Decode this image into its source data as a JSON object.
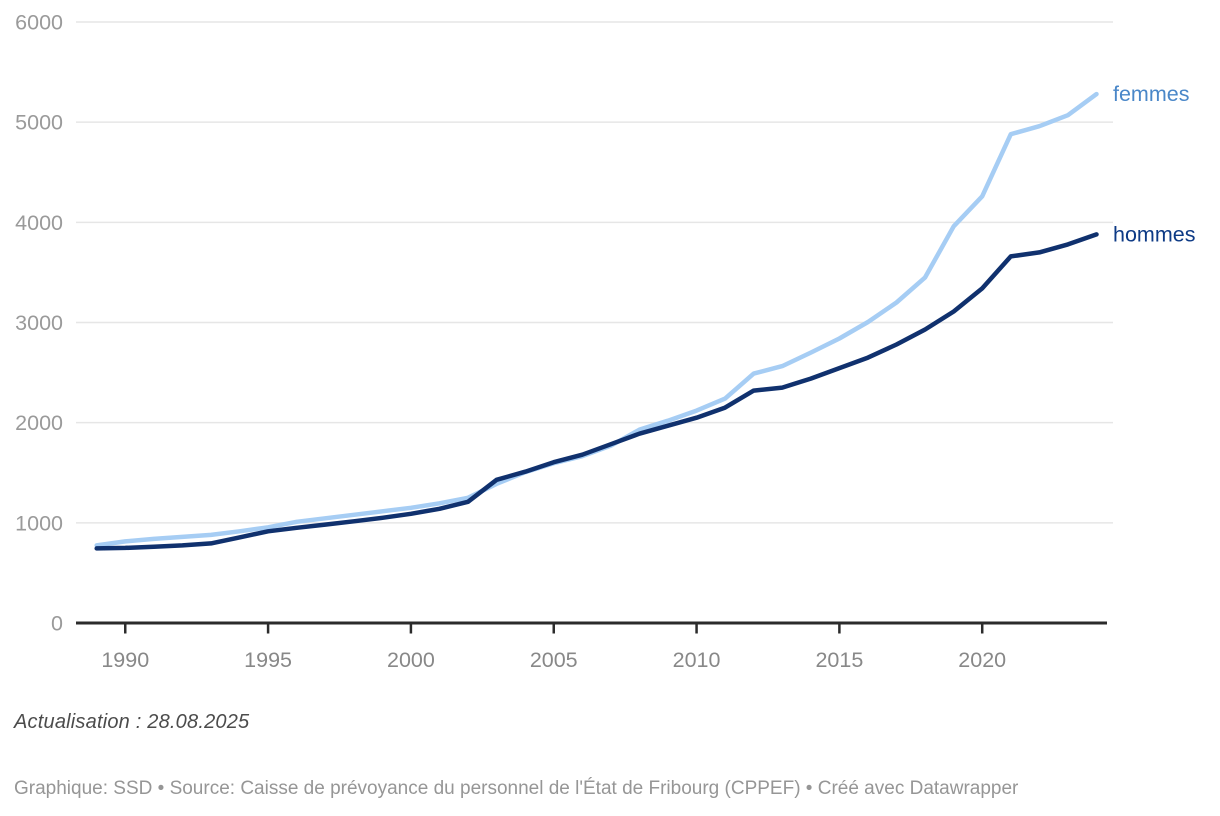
{
  "chart_data": {
    "type": "line",
    "title": "",
    "xlabel": "",
    "ylabel": "",
    "x": [
      1989,
      1990,
      1991,
      1992,
      1993,
      1994,
      1995,
      1996,
      1997,
      1998,
      1999,
      2000,
      2001,
      2002,
      2003,
      2004,
      2005,
      2006,
      2007,
      2008,
      2009,
      2010,
      2011,
      2012,
      2013,
      2014,
      2015,
      2016,
      2017,
      2018,
      2019,
      2020,
      2021,
      2022,
      2023,
      2024
    ],
    "series": [
      {
        "name": "femmes",
        "color": "#a6cdf4",
        "label_color": "#4a87c8",
        "values": [
          775,
          815,
          840,
          860,
          880,
          915,
          955,
          1010,
          1045,
          1080,
          1115,
          1150,
          1195,
          1250,
          1390,
          1505,
          1595,
          1665,
          1770,
          1930,
          2020,
          2120,
          2240,
          2490,
          2565,
          2700,
          2840,
          3005,
          3200,
          3450,
          3960,
          4260,
          4880,
          4960,
          5070,
          5280
        ]
      },
      {
        "name": "hommes",
        "color": "#10316e",
        "label_color": "#0d3a85",
        "values": [
          745,
          750,
          762,
          775,
          795,
          855,
          915,
          950,
          982,
          1015,
          1050,
          1090,
          1140,
          1210,
          1430,
          1510,
          1605,
          1680,
          1785,
          1890,
          1970,
          2050,
          2150,
          2320,
          2350,
          2440,
          2545,
          2650,
          2780,
          2930,
          3110,
          3340,
          3660,
          3700,
          3780,
          3880
        ]
      }
    ],
    "ylim": [
      0,
      6000
    ],
    "yticks": [
      0,
      1000,
      2000,
      3000,
      4000,
      5000,
      6000
    ],
    "xticks": [
      1990,
      1995,
      2000,
      2005,
      2010,
      2015,
      2020
    ],
    "grid": "horizontal",
    "legend_position": "labels-at-line-ends",
    "colors": {
      "gridline": "#e6e6e6",
      "axis_line": "#2b2b2b",
      "y_tick_label": "#9a9a9a",
      "x_tick_label": "#888888"
    }
  },
  "footer": {
    "update_note": "Actualisation : 28.08.2025",
    "credit": "Graphique: SSD • Source: Caisse de prévoyance du personnel de l'État de Fribourg (CPPEF) • Créé avec Datawrapper"
  }
}
